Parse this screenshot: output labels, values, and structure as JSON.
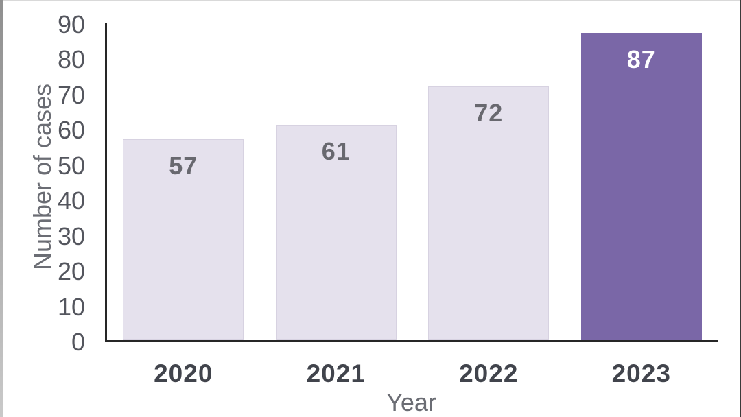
{
  "window": {
    "background": "#ffffff",
    "edge_left_color": "#8f8f8f",
    "edge_top_color": "#d9d9d9",
    "edge_right_color": "#3a3a3a"
  },
  "chart_data": {
    "type": "bar",
    "title": "",
    "categories": [
      "2020",
      "2021",
      "2022",
      "2023"
    ],
    "values": [
      57,
      61,
      72,
      87
    ],
    "data_labels": [
      "57",
      "61",
      "72",
      "87"
    ],
    "xlabel": "Year",
    "ylabel": "Number of cases",
    "ylim": [
      0,
      90
    ],
    "yticks": [
      0,
      10,
      20,
      30,
      40,
      50,
      60,
      70,
      80,
      90
    ],
    "grid": false,
    "legend": "none",
    "highlight_category": "2023",
    "bar_colors": [
      "#E5E1ED",
      "#E5E1ED",
      "#E5E1ED",
      "#7A67A7"
    ],
    "bar_border_colors": [
      "#D7D2E1",
      "#D7D2E1",
      "#D7D2E1",
      "#7A67A7"
    ],
    "data_label_colors": [
      "#68686F",
      "#68686F",
      "#68686F",
      "#FFFFFF"
    ],
    "axis_color": "#262626",
    "tick_label_color": "#54565e",
    "category_label_color": "#41444c",
    "axis_title_color": "#6b6d74"
  }
}
